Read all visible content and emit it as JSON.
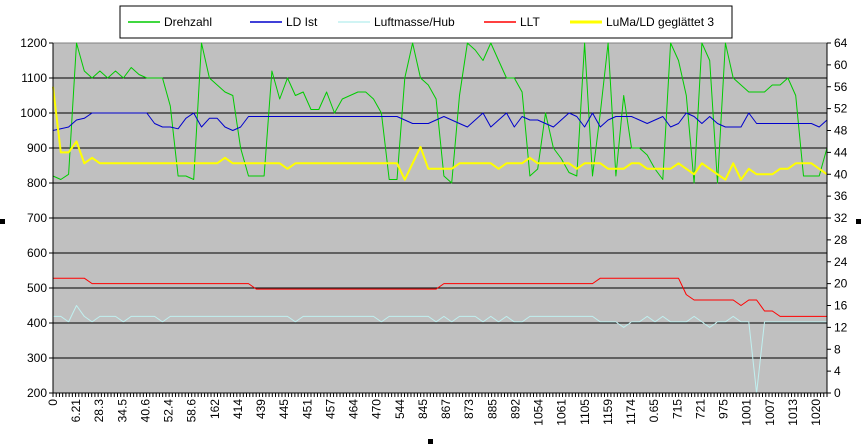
{
  "chart_data": {
    "type": "line",
    "title": "",
    "xlabel": "",
    "ylabel": "",
    "ylim": [
      200,
      1200
    ],
    "y2lim": [
      0,
      64
    ],
    "y_ticks": [
      200,
      300,
      400,
      500,
      600,
      700,
      800,
      900,
      1000,
      1100,
      1200
    ],
    "y2_ticks": [
      0,
      4,
      8,
      12,
      16,
      20,
      24,
      28,
      32,
      36,
      40,
      44,
      48,
      52,
      56,
      60,
      64
    ],
    "x_tick_labels": [
      "0",
      "6.21",
      "28.3",
      "34.5",
      "40.6",
      "52.4",
      "58.6",
      "162",
      "414",
      "439",
      "445",
      "451",
      "457",
      "464",
      "470",
      "544",
      "845",
      "867",
      "873",
      "885",
      "892",
      "1054",
      "1061",
      "1105",
      "1159",
      "1174",
      "0.65",
      "715",
      "721",
      "975",
      "1001",
      "1007",
      "1013",
      "1020"
    ],
    "grid": "horizontal",
    "plot_background": "#c0c0c0",
    "legend_position": "top",
    "series": [
      {
        "name": "Drehzahl",
        "color": "#00cc00",
        "axis": "left",
        "width": 1,
        "values": [
          820,
          810,
          825,
          1200,
          1120,
          1100,
          1120,
          1100,
          1120,
          1100,
          1130,
          1110,
          1100,
          1100,
          1100,
          1020,
          820,
          820,
          810,
          1200,
          1100,
          1080,
          1060,
          1050,
          900,
          820,
          820,
          820,
          1120,
          1040,
          1100,
          1050,
          1060,
          1010,
          1010,
          1060,
          1000,
          1040,
          1050,
          1060,
          1060,
          1040,
          1000,
          810,
          810,
          1100,
          1200,
          1100,
          1080,
          1040,
          820,
          800,
          1050,
          1200,
          1180,
          1150,
          1200,
          1150,
          1100,
          1100,
          1060,
          820,
          840,
          1000,
          900,
          870,
          830,
          820,
          1200,
          820,
          1000,
          1200,
          820,
          1050,
          900,
          900,
          880,
          840,
          810,
          1200,
          1150,
          1050,
          800,
          1200,
          1150,
          800,
          1200,
          1100,
          1080,
          1060,
          1060,
          1060,
          1080,
          1080,
          1100,
          1050,
          820,
          820,
          820,
          900
        ]
      },
      {
        "name": "LD Ist",
        "color": "#0000cc",
        "axis": "left",
        "width": 1,
        "values": [
          950,
          955,
          960,
          980,
          985,
          1000,
          1000,
          1000,
          1000,
          1000,
          1000,
          1000,
          1000,
          970,
          960,
          960,
          955,
          985,
          1000,
          960,
          985,
          985,
          960,
          950,
          960,
          990,
          990,
          990,
          990,
          990,
          990,
          990,
          990,
          990,
          990,
          990,
          990,
          990,
          990,
          990,
          990,
          990,
          990,
          990,
          990,
          980,
          970,
          970,
          970,
          980,
          990,
          980,
          970,
          960,
          980,
          1000,
          960,
          980,
          1000,
          960,
          990,
          980,
          980,
          970,
          960,
          980,
          1000,
          990,
          960,
          1000,
          960,
          980,
          990,
          990,
          990,
          980,
          970,
          980,
          990,
          960,
          970,
          1000,
          990,
          970,
          990,
          970,
          960,
          960,
          960,
          1000,
          970,
          970,
          970,
          970,
          970,
          970,
          970,
          970,
          960,
          980
        ]
      },
      {
        "name": "Luftmasse/Hub",
        "color": "#c0f0f0",
        "axis": "right",
        "width": 1,
        "values": [
          14,
          14,
          13,
          16,
          14,
          13,
          14,
          14,
          14,
          13,
          14,
          14,
          14,
          14,
          13,
          14,
          14,
          14,
          14,
          14,
          14,
          14,
          14,
          14,
          14,
          14,
          14,
          14,
          14,
          14,
          14,
          13,
          14,
          14,
          14,
          14,
          14,
          14,
          14,
          14,
          14,
          14,
          13,
          14,
          14,
          14,
          14,
          14,
          14,
          13,
          14,
          13,
          14,
          14,
          14,
          13,
          14,
          13,
          14,
          13,
          13,
          14,
          14,
          14,
          14,
          14,
          14,
          14,
          14,
          14,
          13,
          13,
          13,
          12,
          13,
          13,
          14,
          13,
          14,
          13,
          13,
          13,
          14,
          13,
          12,
          13,
          13,
          14,
          13,
          13,
          0,
          13,
          13,
          13,
          13,
          13,
          13,
          13,
          13,
          13
        ]
      },
      {
        "name": "LLT",
        "color": "#ff0000",
        "axis": "right",
        "width": 1,
        "values": [
          21,
          21,
          21,
          21,
          21,
          20,
          20,
          20,
          20,
          20,
          20,
          20,
          20,
          20,
          20,
          20,
          20,
          20,
          20,
          20,
          20,
          20,
          20,
          20,
          20,
          20,
          19,
          19,
          19,
          19,
          19,
          19,
          19,
          19,
          19,
          19,
          19,
          19,
          19,
          19,
          19,
          19,
          19,
          19,
          19,
          19,
          19,
          19,
          19,
          19,
          20,
          20,
          20,
          20,
          20,
          20,
          20,
          20,
          20,
          20,
          20,
          20,
          20,
          20,
          20,
          20,
          20,
          20,
          20,
          20,
          21,
          21,
          21,
          21,
          21,
          21,
          21,
          21,
          21,
          21,
          21,
          18,
          17,
          17,
          17,
          17,
          17,
          17,
          16,
          17,
          17,
          15,
          15,
          14,
          14,
          14,
          14,
          14,
          14,
          14
        ]
      },
      {
        "name": "LuMa/LD geglättet 3",
        "color": "#ffff00",
        "axis": "right",
        "width": 2,
        "values": [
          56,
          44,
          44,
          46,
          42,
          43,
          42,
          42,
          42,
          42,
          42,
          42,
          42,
          42,
          42,
          42,
          42,
          42,
          42,
          42,
          42,
          42,
          43,
          42,
          42,
          42,
          42,
          42,
          42,
          42,
          41,
          42,
          42,
          42,
          42,
          42,
          42,
          42,
          42,
          42,
          42,
          42,
          42,
          42,
          42,
          39,
          42,
          45,
          41,
          41,
          41,
          41,
          42,
          42,
          42,
          42,
          42,
          41,
          42,
          42,
          42,
          43,
          42,
          42,
          42,
          42,
          42,
          41,
          42,
          42,
          42,
          41,
          41,
          41,
          42,
          42,
          41,
          41,
          41,
          41,
          42,
          41,
          40,
          42,
          41,
          40,
          39,
          42,
          39,
          41,
          40,
          40,
          40,
          41,
          41,
          42,
          42,
          42,
          41,
          40
        ]
      }
    ]
  }
}
